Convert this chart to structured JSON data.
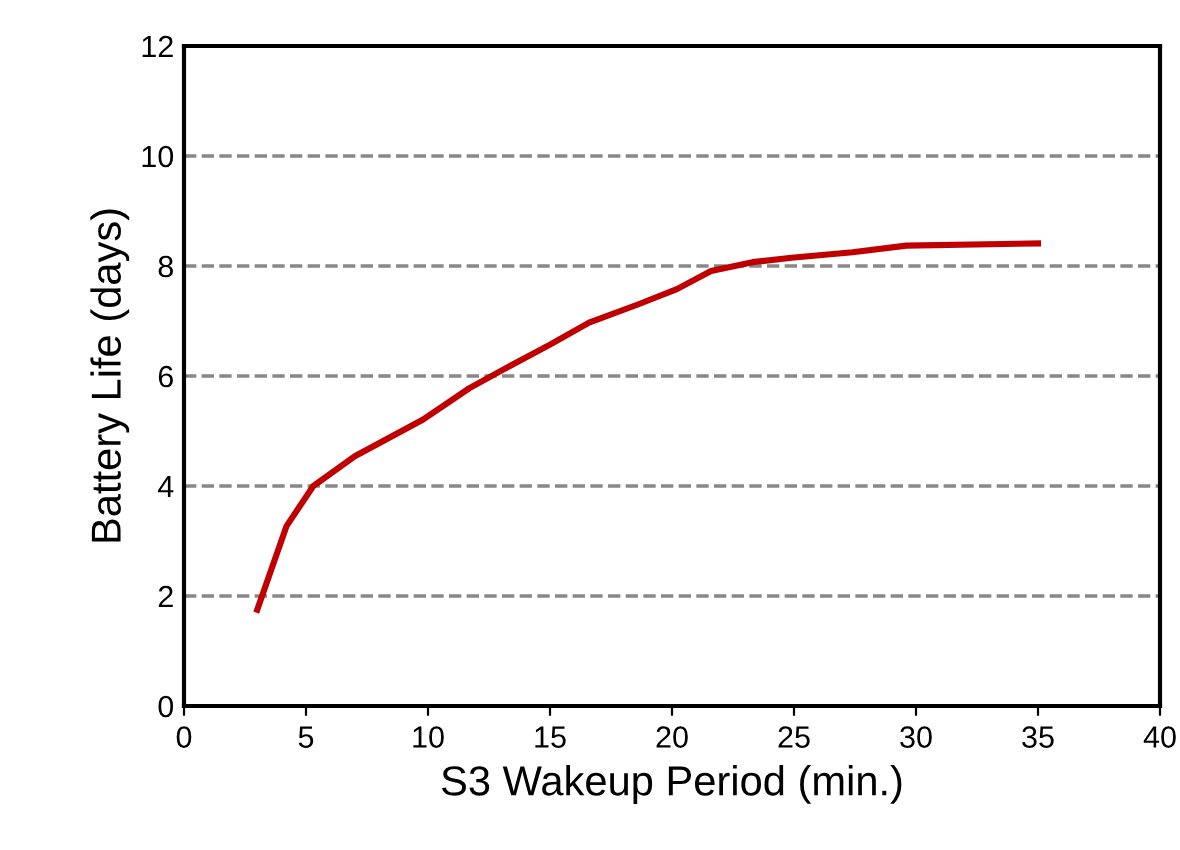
{
  "chart_data": {
    "type": "line",
    "xlabel": "S3 Wakeup Period (min.)",
    "ylabel": "Battery Life (days)",
    "series": [
      {
        "color": "#c00000",
        "x": [
          3.0,
          4.2,
          5.3,
          7.0,
          9.8,
          11.7,
          13.1,
          15.0,
          16.6,
          18.6,
          20.2,
          21.6,
          23.3,
          24.9,
          27.4,
          29.6,
          35.0
        ],
        "values": [
          1.75,
          3.27,
          4.0,
          4.54,
          5.21,
          5.78,
          6.12,
          6.57,
          6.97,
          7.3,
          7.58,
          7.91,
          8.07,
          8.15,
          8.25,
          8.37,
          8.41
        ]
      }
    ],
    "xlim": [
      0,
      40
    ],
    "xticks": [
      0,
      5,
      10,
      15,
      20,
      25,
      30,
      35,
      40
    ],
    "ylim": [
      0,
      12
    ],
    "yticks": [
      0,
      2,
      4,
      6,
      8,
      10,
      12
    ],
    "grid": "y",
    "marker": "none",
    "line_style": "solid",
    "legend": false
  }
}
